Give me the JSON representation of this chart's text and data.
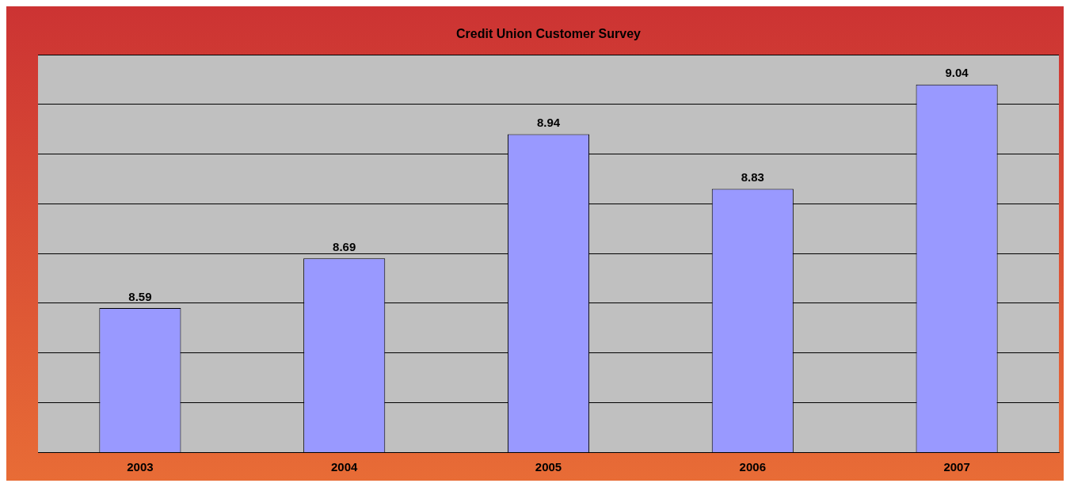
{
  "chart_data": {
    "type": "bar",
    "title": "Credit Union Customer Survey",
    "categories": [
      "2003",
      "2004",
      "2005",
      "2006",
      "2007"
    ],
    "values": [
      8.59,
      8.69,
      8.94,
      8.83,
      9.04
    ],
    "color": "#9999ff",
    "ylim": [
      8.3,
      9.1
    ],
    "yticks": [
      {
        "value": 8.3,
        "label": null
      },
      {
        "value": 8.4,
        "label": null
      },
      {
        "value": 8.5,
        "label": null
      },
      {
        "value": 8.6,
        "label": null
      },
      {
        "value": 8.7,
        "label": null
      },
      {
        "value": 8.8,
        "label": null
      },
      {
        "value": 8.9,
        "label": null
      },
      {
        "value": 9.0,
        "label": null
      },
      {
        "value": 9.1,
        "label": null
      }
    ],
    "tick_labels": "x",
    "grid": "y",
    "data_labels": true,
    "legend": false
  }
}
